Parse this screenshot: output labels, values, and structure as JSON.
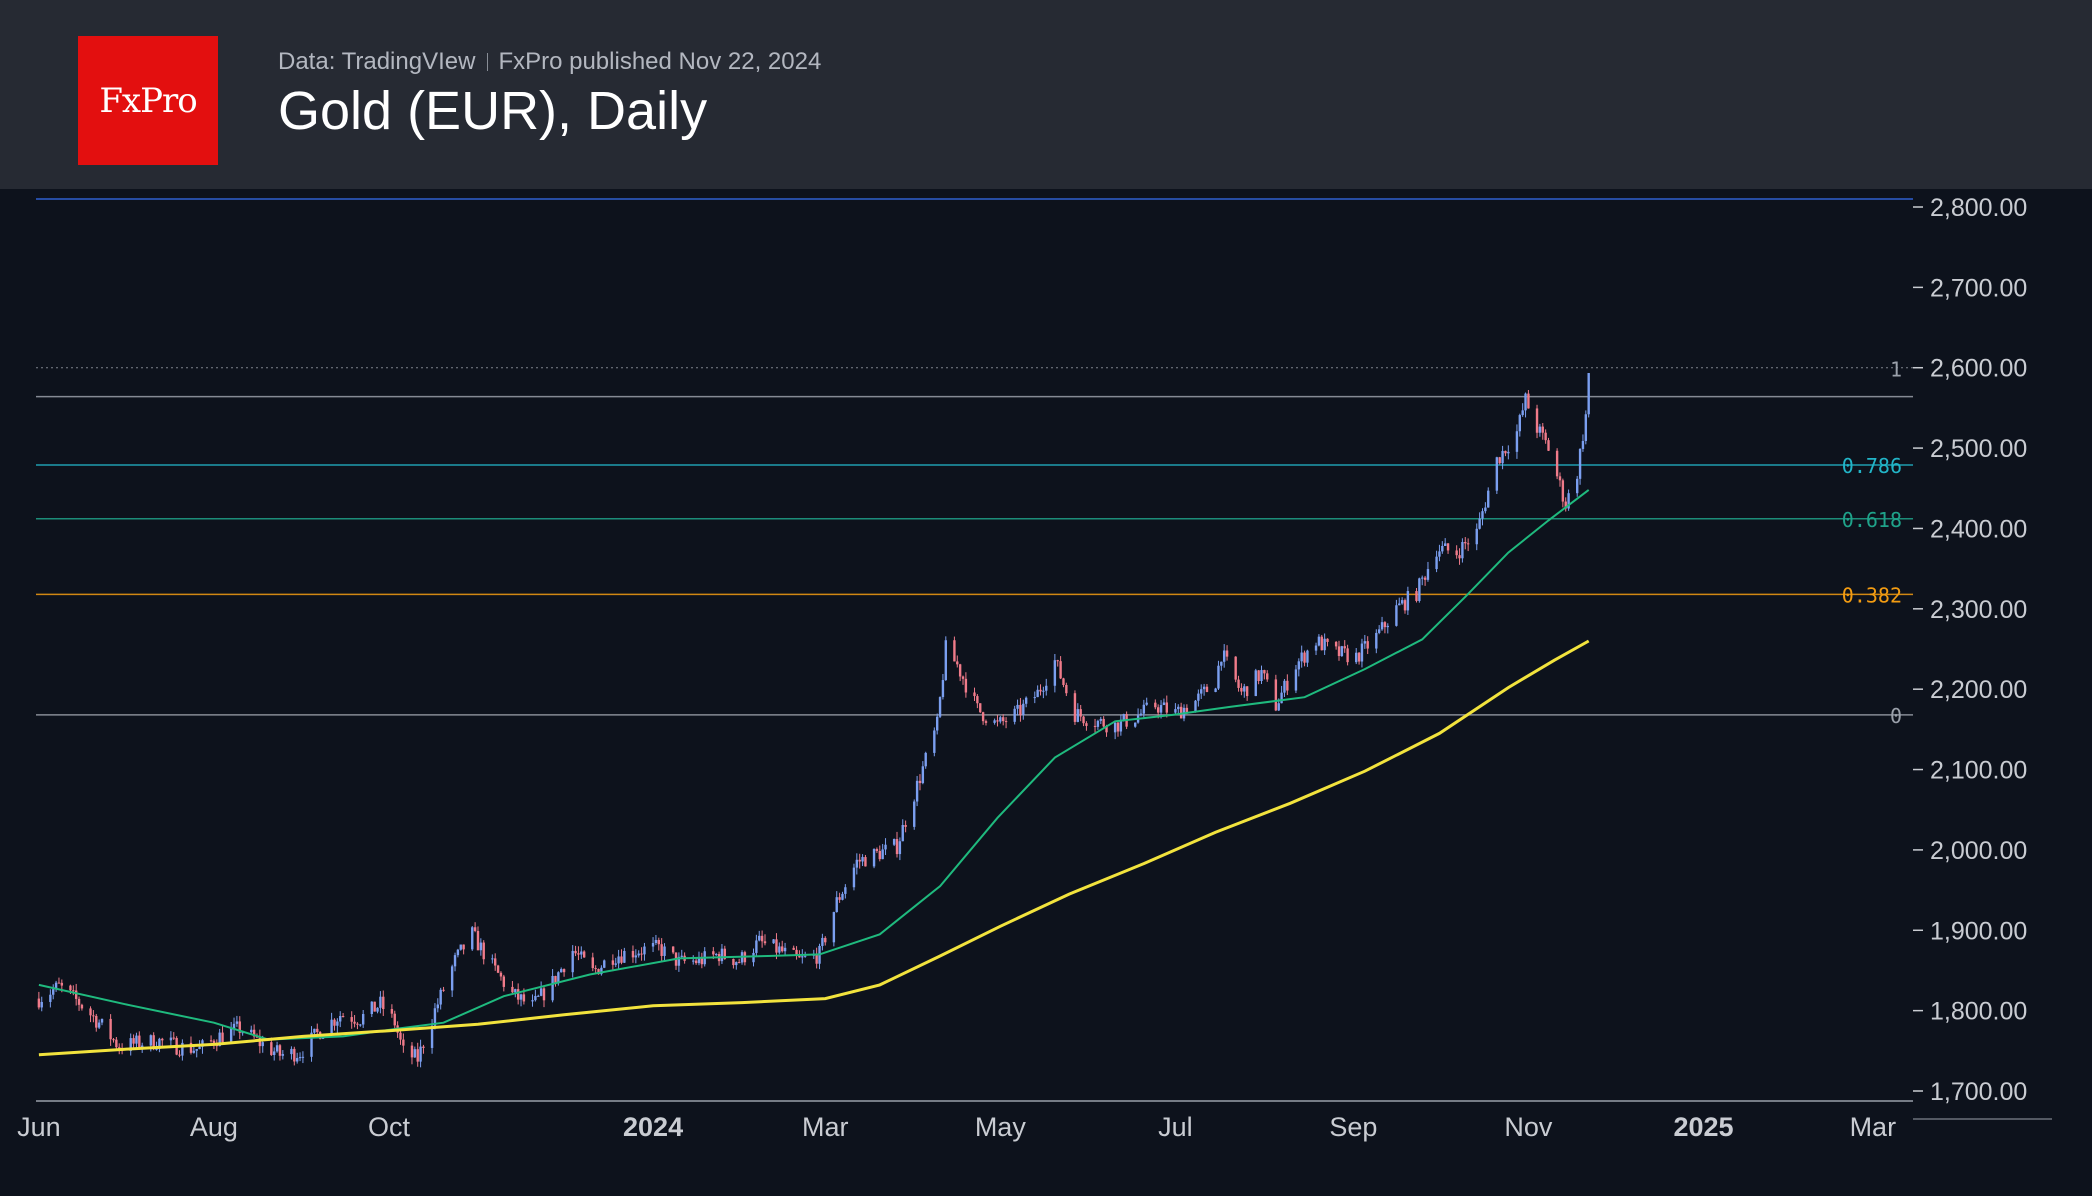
{
  "header": {
    "logo_text": "FxPro",
    "source": "Data: TradingVIew",
    "published": "FxPro published Nov 22, 2024",
    "title": "Gold (EUR), Daily"
  },
  "colors": {
    "background": "#0d121c",
    "header_bg": "#262a33",
    "logo_bg": "#e30f0f",
    "candle_up": "#7b9ff0",
    "candle_down": "#f07b8a",
    "ma_short": "#1fba7e",
    "ma_long": "#f2e33d",
    "fib_0786": "#22b5c8",
    "fib_0618": "#1fa38a",
    "fib_0382": "#f39c12",
    "fib_neutral": "#9aa0aa"
  },
  "chart_data": {
    "type": "candlestick",
    "title": "Gold (EUR), Daily",
    "y_range": [
      1700,
      2800
    ],
    "y_ticks": [
      "2,800.00",
      "2,700.00",
      "2,600.00",
      "2,500.00",
      "2,400.00",
      "2,300.00",
      "2,200.00",
      "2,100.00",
      "2,000.00",
      "1,900.00",
      "1,800.00",
      "1,700.00"
    ],
    "x_range": [
      "2023-05-31",
      "2025-03-15"
    ],
    "x_ticks": [
      {
        "label": "Jun",
        "date": "2023-06-01"
      },
      {
        "label": "Aug",
        "date": "2023-08-01"
      },
      {
        "label": "Oct",
        "date": "2023-10-01"
      },
      {
        "label": "2024",
        "date": "2024-01-01"
      },
      {
        "label": "Mar",
        "date": "2024-03-01"
      },
      {
        "label": "May",
        "date": "2024-05-01"
      },
      {
        "label": "Jul",
        "date": "2024-07-01"
      },
      {
        "label": "Sep",
        "date": "2024-09-01"
      },
      {
        "label": "Nov",
        "date": "2024-11-01"
      },
      {
        "label": "2025",
        "date": "2025-01-01"
      },
      {
        "label": "Mar",
        "date": "2025-03-01"
      }
    ],
    "top_reference_line": 2810,
    "fib_levels": [
      {
        "label": "1",
        "value": 2599,
        "line_value": 2564,
        "dotted_value": 2600
      },
      {
        "label": "0.786",
        "value": 2479
      },
      {
        "label": "0.618",
        "value": 2412
      },
      {
        "label": "0.382",
        "value": 2318
      },
      {
        "label": "0",
        "value": 2168
      }
    ],
    "close_path": [
      [
        "2023-06-01",
        1815
      ],
      [
        "2023-06-08",
        1830
      ],
      [
        "2023-06-15",
        1810
      ],
      [
        "2023-06-22",
        1785
      ],
      [
        "2023-06-29",
        1755
      ],
      [
        "2023-07-06",
        1760
      ],
      [
        "2023-07-13",
        1762
      ],
      [
        "2023-07-20",
        1755
      ],
      [
        "2023-07-27",
        1752
      ],
      [
        "2023-08-03",
        1768
      ],
      [
        "2023-08-10",
        1778
      ],
      [
        "2023-08-17",
        1760
      ],
      [
        "2023-08-24",
        1745
      ],
      [
        "2023-08-31",
        1748
      ],
      [
        "2023-09-07",
        1775
      ],
      [
        "2023-09-14",
        1795
      ],
      [
        "2023-09-21",
        1790
      ],
      [
        "2023-09-28",
        1808
      ],
      [
        "2023-10-03",
        1785
      ],
      [
        "2023-10-06",
        1748
      ],
      [
        "2023-10-11",
        1740
      ],
      [
        "2023-10-17",
        1800
      ],
      [
        "2023-10-24",
        1862
      ],
      [
        "2023-10-30",
        1895
      ],
      [
        "2023-11-06",
        1855
      ],
      [
        "2023-11-13",
        1820
      ],
      [
        "2023-11-20",
        1805
      ],
      [
        "2023-11-27",
        1835
      ],
      [
        "2023-12-04",
        1875
      ],
      [
        "2023-12-11",
        1848
      ],
      [
        "2023-12-18",
        1868
      ],
      [
        "2023-12-27",
        1875
      ],
      [
        "2024-01-03",
        1878
      ],
      [
        "2024-01-10",
        1860
      ],
      [
        "2024-01-17",
        1862
      ],
      [
        "2024-01-24",
        1870
      ],
      [
        "2024-01-31",
        1862
      ],
      [
        "2024-02-07",
        1885
      ],
      [
        "2024-02-14",
        1875
      ],
      [
        "2024-02-21",
        1862
      ],
      [
        "2024-02-28",
        1870
      ],
      [
        "2024-03-05",
        1935
      ],
      [
        "2024-03-12",
        1985
      ],
      [
        "2024-03-19",
        1995
      ],
      [
        "2024-03-26",
        2005
      ],
      [
        "2024-04-02",
        2080
      ],
      [
        "2024-04-09",
        2155
      ],
      [
        "2024-04-12",
        2250
      ],
      [
        "2024-04-16",
        2230
      ],
      [
        "2024-04-23",
        2175
      ],
      [
        "2024-04-30",
        2155
      ],
      [
        "2024-05-07",
        2170
      ],
      [
        "2024-05-14",
        2195
      ],
      [
        "2024-05-20",
        2235
      ],
      [
        "2024-05-27",
        2170
      ],
      [
        "2024-06-03",
        2160
      ],
      [
        "2024-06-10",
        2155
      ],
      [
        "2024-06-17",
        2165
      ],
      [
        "2024-06-24",
        2180
      ],
      [
        "2024-07-01",
        2170
      ],
      [
        "2024-07-08",
        2185
      ],
      [
        "2024-07-15",
        2210
      ],
      [
        "2024-07-17",
        2245
      ],
      [
        "2024-07-24",
        2195
      ],
      [
        "2024-07-31",
        2220
      ],
      [
        "2024-08-05",
        2180
      ],
      [
        "2024-08-12",
        2230
      ],
      [
        "2024-08-19",
        2260
      ],
      [
        "2024-08-26",
        2245
      ],
      [
        "2024-09-02",
        2240
      ],
      [
        "2024-09-09",
        2265
      ],
      [
        "2024-09-16",
        2300
      ],
      [
        "2024-09-23",
        2320
      ],
      [
        "2024-09-30",
        2375
      ],
      [
        "2024-10-07",
        2370
      ],
      [
        "2024-10-14",
        2395
      ],
      [
        "2024-10-21",
        2485
      ],
      [
        "2024-10-28",
        2520
      ],
      [
        "2024-10-31",
        2560
      ],
      [
        "2024-11-04",
        2525
      ],
      [
        "2024-11-08",
        2500
      ],
      [
        "2024-11-14",
        2430
      ],
      [
        "2024-11-18",
        2470
      ],
      [
        "2024-11-21",
        2540
      ],
      [
        "2024-11-22",
        2592
      ]
    ],
    "series": [
      {
        "name": "",
        "type": "line",
        "color": "#1fba7e",
        "points": [
          [
            "2023-06-01",
            1832
          ],
          [
            "2023-07-01",
            1808
          ],
          [
            "2023-08-01",
            1785
          ],
          [
            "2023-08-20",
            1764
          ],
          [
            "2023-09-15",
            1768
          ],
          [
            "2023-10-05",
            1778
          ],
          [
            "2023-10-20",
            1785
          ],
          [
            "2023-11-10",
            1818
          ],
          [
            "2023-12-10",
            1845
          ],
          [
            "2024-01-10",
            1865
          ],
          [
            "2024-02-10",
            1868
          ],
          [
            "2024-02-28",
            1870
          ],
          [
            "2024-03-20",
            1895
          ],
          [
            "2024-04-10",
            1955
          ],
          [
            "2024-04-30",
            2040
          ],
          [
            "2024-05-20",
            2115
          ],
          [
            "2024-06-10",
            2160
          ],
          [
            "2024-06-30",
            2168
          ],
          [
            "2024-07-20",
            2178
          ],
          [
            "2024-08-15",
            2190
          ],
          [
            "2024-09-05",
            2225
          ],
          [
            "2024-09-25",
            2262
          ],
          [
            "2024-10-10",
            2315
          ],
          [
            "2024-10-25",
            2370
          ],
          [
            "2024-11-08",
            2410
          ],
          [
            "2024-11-22",
            2448
          ]
        ]
      },
      {
        "name": "",
        "type": "line",
        "color": "#f2e33d",
        "points": [
          [
            "2023-06-01",
            1745
          ],
          [
            "2023-07-01",
            1752
          ],
          [
            "2023-08-01",
            1758
          ],
          [
            "2023-09-01",
            1768
          ],
          [
            "2023-10-01",
            1775
          ],
          [
            "2023-11-01",
            1783
          ],
          [
            "2023-12-01",
            1795
          ],
          [
            "2024-01-01",
            1806
          ],
          [
            "2024-02-01",
            1810
          ],
          [
            "2024-03-01",
            1815
          ],
          [
            "2024-03-20",
            1832
          ],
          [
            "2024-04-10",
            1868
          ],
          [
            "2024-05-01",
            1905
          ],
          [
            "2024-05-25",
            1945
          ],
          [
            "2024-06-20",
            1983
          ],
          [
            "2024-07-15",
            2022
          ],
          [
            "2024-08-10",
            2058
          ],
          [
            "2024-09-05",
            2098
          ],
          [
            "2024-10-01",
            2145
          ],
          [
            "2024-10-25",
            2202
          ],
          [
            "2024-11-10",
            2236
          ],
          [
            "2024-11-22",
            2260
          ]
        ]
      }
    ]
  }
}
